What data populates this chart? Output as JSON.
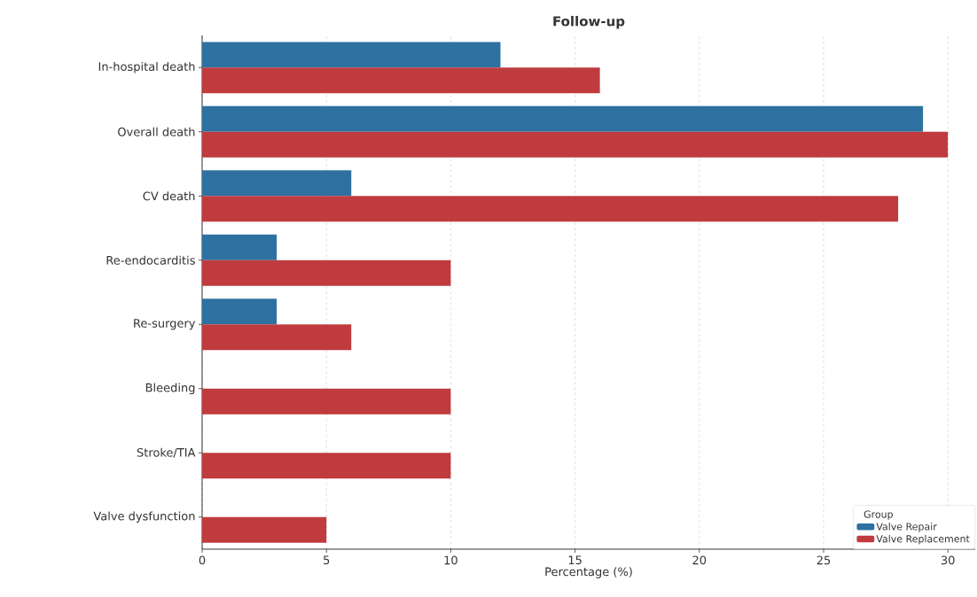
{
  "chart_data": {
    "type": "bar",
    "orientation": "horizontal",
    "title": "Follow-up",
    "xlabel": "Percentage (%)",
    "categories": [
      "In-hospital death",
      "Overall death",
      "CV death",
      "Re-endocarditis",
      "Re-surgery",
      "Bleeding",
      "Stroke/TIA",
      "Valve dysfunction"
    ],
    "series": [
      {
        "name": "Valve Repair",
        "color": "#2e71a1",
        "values": [
          12,
          29,
          6,
          3,
          3,
          0,
          0,
          0
        ]
      },
      {
        "name": "Valve Replacement",
        "color": "#bf3b3e",
        "values": [
          16,
          30,
          28,
          10,
          6,
          10,
          10,
          5
        ]
      }
    ],
    "xlim": [
      0,
      31.1
    ],
    "xticks": [
      0,
      5,
      10,
      15,
      20,
      25,
      30
    ],
    "grid": "x",
    "legend": "bottom right",
    "legend_title": "Group"
  }
}
